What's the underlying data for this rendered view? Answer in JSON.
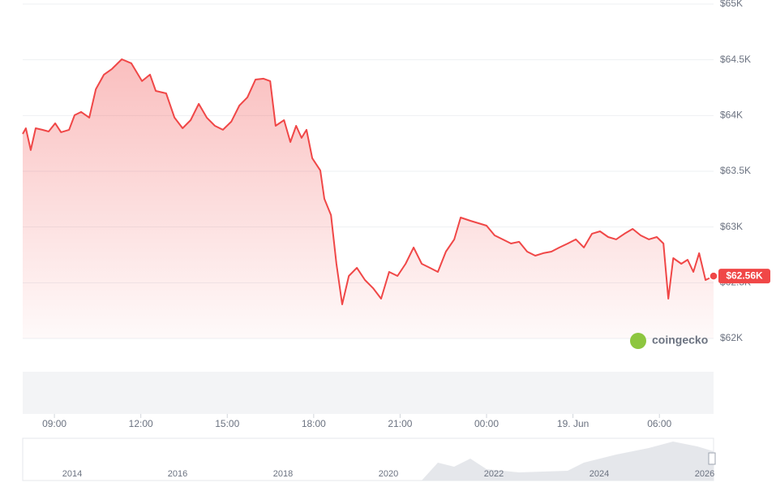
{
  "chart_data": {
    "type": "line",
    "x": [
      7.9,
      8.01,
      8.18,
      8.35,
      8.58,
      8.8,
      9.03,
      9.23,
      9.51,
      9.7,
      9.93,
      10.21,
      10.44,
      10.72,
      11.0,
      11.34,
      11.67,
      12.04,
      12.32,
      12.52,
      12.88,
      13.17,
      13.45,
      13.73,
      14.01,
      14.29,
      14.57,
      14.85,
      15.14,
      15.42,
      15.7,
      15.98,
      16.26,
      16.49,
      16.68,
      16.97,
      17.19,
      17.39,
      17.58,
      17.75,
      17.95,
      18.23,
      18.37,
      18.6,
      18.79,
      18.99,
      19.22,
      19.5,
      19.78,
      20.06,
      20.34,
      20.62,
      20.91,
      21.19,
      21.47,
      21.75,
      22.03,
      22.31,
      22.59,
      22.88,
      23.1,
      23.44,
      23.72,
      24.0,
      24.28,
      24.56,
      24.85,
      25.13,
      25.41,
      25.69,
      25.97,
      26.25,
      26.53,
      26.82,
      27.1,
      27.38,
      27.66,
      27.94,
      28.22,
      28.5,
      28.79,
      29.07,
      29.35,
      29.63,
      29.91,
      30.14,
      30.31,
      30.48,
      30.76,
      30.98,
      31.18,
      31.38,
      31.6,
      31.88
    ],
    "series": [
      {
        "name": "Price",
        "color": "#f04747",
        "values": [
          63835,
          63886,
          63690,
          63886,
          63872,
          63857,
          63930,
          63850,
          63872,
          64003,
          64032,
          63981,
          64236,
          64367,
          64418,
          64505,
          64469,
          64309,
          64367,
          64221,
          64199,
          63981,
          63886,
          63959,
          64105,
          63981,
          63908,
          63872,
          63945,
          64090,
          64163,
          64323,
          64331,
          64309,
          63908,
          63959,
          63762,
          63908,
          63799,
          63872,
          63617,
          63508,
          63253,
          63107,
          62670,
          62306,
          62561,
          62634,
          62524,
          62452,
          62357,
          62597,
          62561,
          62670,
          62816,
          62670,
          62634,
          62597,
          62779,
          62889,
          63085,
          63056,
          63034,
          63012,
          62925,
          62889,
          62852,
          62867,
          62779,
          62743,
          62765,
          62779,
          62816,
          62852,
          62889,
          62816,
          62940,
          62961,
          62910,
          62889,
          62940,
          62983,
          62925,
          62889,
          62910,
          62852,
          62357,
          62721,
          62670,
          62706,
          62597,
          62765,
          62524,
          62560
        ]
      }
    ],
    "current": {
      "value": 62560,
      "label": "$62.56K"
    },
    "xlim": [
      7.9,
      31.88
    ],
    "xticks": [
      {
        "value": 9,
        "label": "09:00"
      },
      {
        "value": 12,
        "label": "12:00"
      },
      {
        "value": 15,
        "label": "15:00"
      },
      {
        "value": 18,
        "label": "18:00"
      },
      {
        "value": 21,
        "label": "21:00"
      },
      {
        "value": 24,
        "label": "00:00"
      },
      {
        "value": 27,
        "label": "19. Jun"
      },
      {
        "value": 30,
        "label": "06:00"
      }
    ],
    "ylim": [
      62000,
      65000
    ],
    "yticks": [
      {
        "value": 62000,
        "label": "$62K"
      },
      {
        "value": 62500,
        "label": "$62.5K"
      },
      {
        "value": 63000,
        "label": "$63K"
      },
      {
        "value": 63500,
        "label": "$63.5K"
      },
      {
        "value": 64000,
        "label": "$64K"
      },
      {
        "value": 64500,
        "label": "$64.5K"
      },
      {
        "value": 65000,
        "label": "$65K"
      }
    ],
    "grid": true,
    "watermark": "coingecko",
    "navigator_labels": [
      "2014",
      "2016",
      "2018",
      "2020",
      "2022",
      "2024",
      "2026"
    ]
  }
}
